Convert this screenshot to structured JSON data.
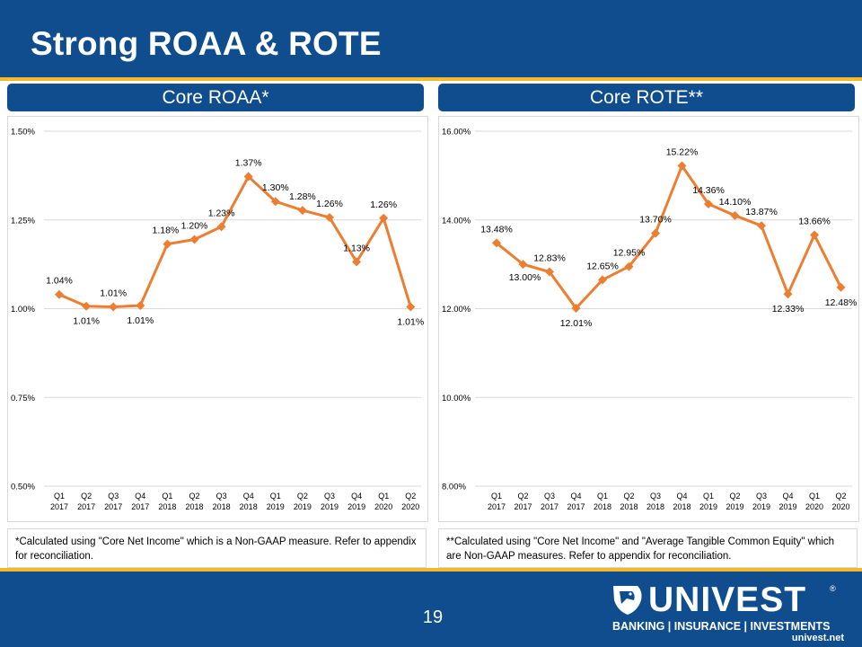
{
  "slide": {
    "title": "Strong ROAA & ROTE",
    "page_number": "19"
  },
  "panels": {
    "left_header": "Core ROAA*",
    "right_header": "Core ROTE**",
    "left_note": "*Calculated using \"Core Net Income\" which is a Non-GAAP measure.  Refer to appendix for reconciliation.",
    "right_note": "**Calculated using \"Core Net Income\" and \"Average Tangible Common Equity\" which are Non-GAAP measures.  Refer to appendix for reconciliation."
  },
  "logo": {
    "wordmark": "UNIVEST",
    "tagline": "BANKING | INSURANCE | INVESTMENTS",
    "url": "univest.net",
    "reg_mark": "®"
  },
  "colors": {
    "navy": "#0f4d8f",
    "gold": "#f2b92b",
    "series": "#ed7d31"
  },
  "chart_data": [
    {
      "type": "line",
      "title": "Core ROAA*",
      "categories": [
        [
          "Q1",
          "2017"
        ],
        [
          "Q2",
          "2017"
        ],
        [
          "Q3",
          "2017"
        ],
        [
          "Q4",
          "2017"
        ],
        [
          "Q1",
          "2018"
        ],
        [
          "Q2",
          "2018"
        ],
        [
          "Q3",
          "2018"
        ],
        [
          "Q4",
          "2018"
        ],
        [
          "Q1",
          "2019"
        ],
        [
          "Q2",
          "2019"
        ],
        [
          "Q3",
          "2019"
        ],
        [
          "Q4",
          "2019"
        ],
        [
          "Q1",
          "2020"
        ],
        [
          "Q2",
          "2020"
        ]
      ],
      "values": [
        1.04,
        1.01,
        1.01,
        1.01,
        1.18,
        1.2,
        1.23,
        1.37,
        1.3,
        1.28,
        1.26,
        1.13,
        1.26,
        1.01
      ],
      "plot_values": [
        1.04,
        1.007,
        1.005,
        1.009,
        1.182,
        1.195,
        1.231,
        1.372,
        1.302,
        1.277,
        1.257,
        1.132,
        1.255,
        1.005
      ],
      "labels": [
        "1.04%",
        "1.01%",
        "1.01%",
        "1.01%",
        "1.18%",
        "1.20%",
        "1.23%",
        "1.37%",
        "1.30%",
        "1.28%",
        "1.26%",
        "1.13%",
        "1.26%",
        "1.01%"
      ],
      "label_placement": [
        "above",
        "below",
        "above",
        "below",
        "above-left",
        "above",
        "above",
        "above",
        "above",
        "above",
        "above",
        "above",
        "above",
        "below"
      ],
      "yticks": [
        "1.50%",
        "1.25%",
        "1.00%",
        "0.75%",
        "0.50%"
      ],
      "ytick_values": [
        1.5,
        1.25,
        1.0,
        0.75,
        0.5
      ],
      "ylim": [
        0.5,
        1.5
      ],
      "grid": true
    },
    {
      "type": "line",
      "title": "Core ROTE**",
      "categories": [
        [
          "Q1",
          "2017"
        ],
        [
          "Q2",
          "2017"
        ],
        [
          "Q3",
          "2017"
        ],
        [
          "Q4",
          "2017"
        ],
        [
          "Q1",
          "2018"
        ],
        [
          "Q2",
          "2018"
        ],
        [
          "Q3",
          "2018"
        ],
        [
          "Q4",
          "2018"
        ],
        [
          "Q1",
          "2019"
        ],
        [
          "Q2",
          "2019"
        ],
        [
          "Q3",
          "2019"
        ],
        [
          "Q4",
          "2019"
        ],
        [
          "Q1",
          "2020"
        ],
        [
          "Q2",
          "2020"
        ]
      ],
      "values": [
        13.48,
        13.0,
        12.83,
        12.01,
        12.65,
        12.95,
        13.7,
        15.22,
        14.36,
        14.1,
        13.87,
        12.33,
        13.66,
        12.48
      ],
      "labels": [
        "13.48%",
        "13.00%",
        "12.83%",
        "12.01%",
        "12.65%",
        "12.95%",
        "13.70%",
        "15.22%",
        "14.36%",
        "14.10%",
        "13.87%",
        "12.33%",
        "13.66%",
        "12.48%"
      ],
      "label_placement": [
        "above",
        "below-right",
        "above",
        "below",
        "above",
        "above",
        "above",
        "above",
        "above",
        "above",
        "above",
        "below",
        "above",
        "below"
      ],
      "yticks": [
        "16.00%",
        "14.00%",
        "12.00%",
        "10.00%",
        "8.00%"
      ],
      "ytick_values": [
        16,
        14,
        12,
        10,
        8
      ],
      "ylim": [
        8,
        16
      ],
      "grid": true
    }
  ]
}
